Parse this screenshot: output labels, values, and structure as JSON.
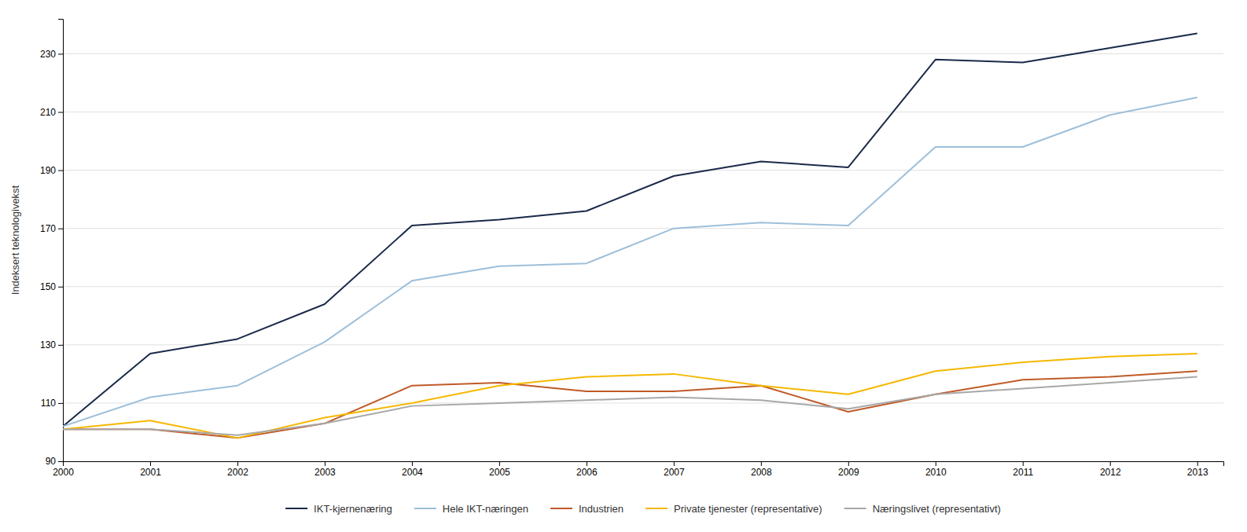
{
  "chart_data": {
    "type": "line",
    "ylabel": "Indeksert teknologivekst",
    "x": [
      2000,
      2001,
      2002,
      2003,
      2004,
      2005,
      2006,
      2007,
      2008,
      2009,
      2010,
      2011,
      2012,
      2013
    ],
    "xlim": [
      2000,
      2013.3
    ],
    "xticks": [
      2000,
      2001,
      2002,
      2003,
      2004,
      2005,
      2006,
      2007,
      2008,
      2009,
      2010,
      2011,
      2012,
      2013
    ],
    "ylim": [
      90,
      242
    ],
    "yticks": [
      90,
      110,
      130,
      150,
      170,
      190,
      210,
      230
    ],
    "grid": true,
    "legend": "bottom",
    "series": [
      {
        "name": "IKT-kjernenæring",
        "color": "#1b2a4a",
        "values": [
          102,
          127,
          132,
          144,
          171,
          173,
          176,
          188,
          193,
          191,
          228,
          227,
          232,
          237
        ]
      },
      {
        "name": "Hele IKT-næringen",
        "color": "#9dbfda",
        "values": [
          102,
          112,
          116,
          131,
          152,
          157,
          158,
          170,
          172,
          171,
          198,
          198,
          209,
          215
        ]
      },
      {
        "name": "Industrien",
        "color": "#c05a28",
        "values": [
          101,
          101,
          98,
          103,
          116,
          117,
          114,
          114,
          116,
          107,
          113,
          118,
          119,
          121
        ]
      },
      {
        "name": "Private tjenester (representative)",
        "color": "#f5b800",
        "values": [
          101,
          104,
          98,
          105,
          110,
          116,
          119,
          120,
          116,
          113,
          121,
          124,
          126,
          127
        ]
      },
      {
        "name": "Næringslivet (representativt)",
        "color": "#a8a8a8",
        "values": [
          101,
          101,
          99,
          103,
          109,
          110,
          111,
          112,
          111,
          108,
          113,
          115,
          117,
          119
        ]
      }
    ]
  }
}
